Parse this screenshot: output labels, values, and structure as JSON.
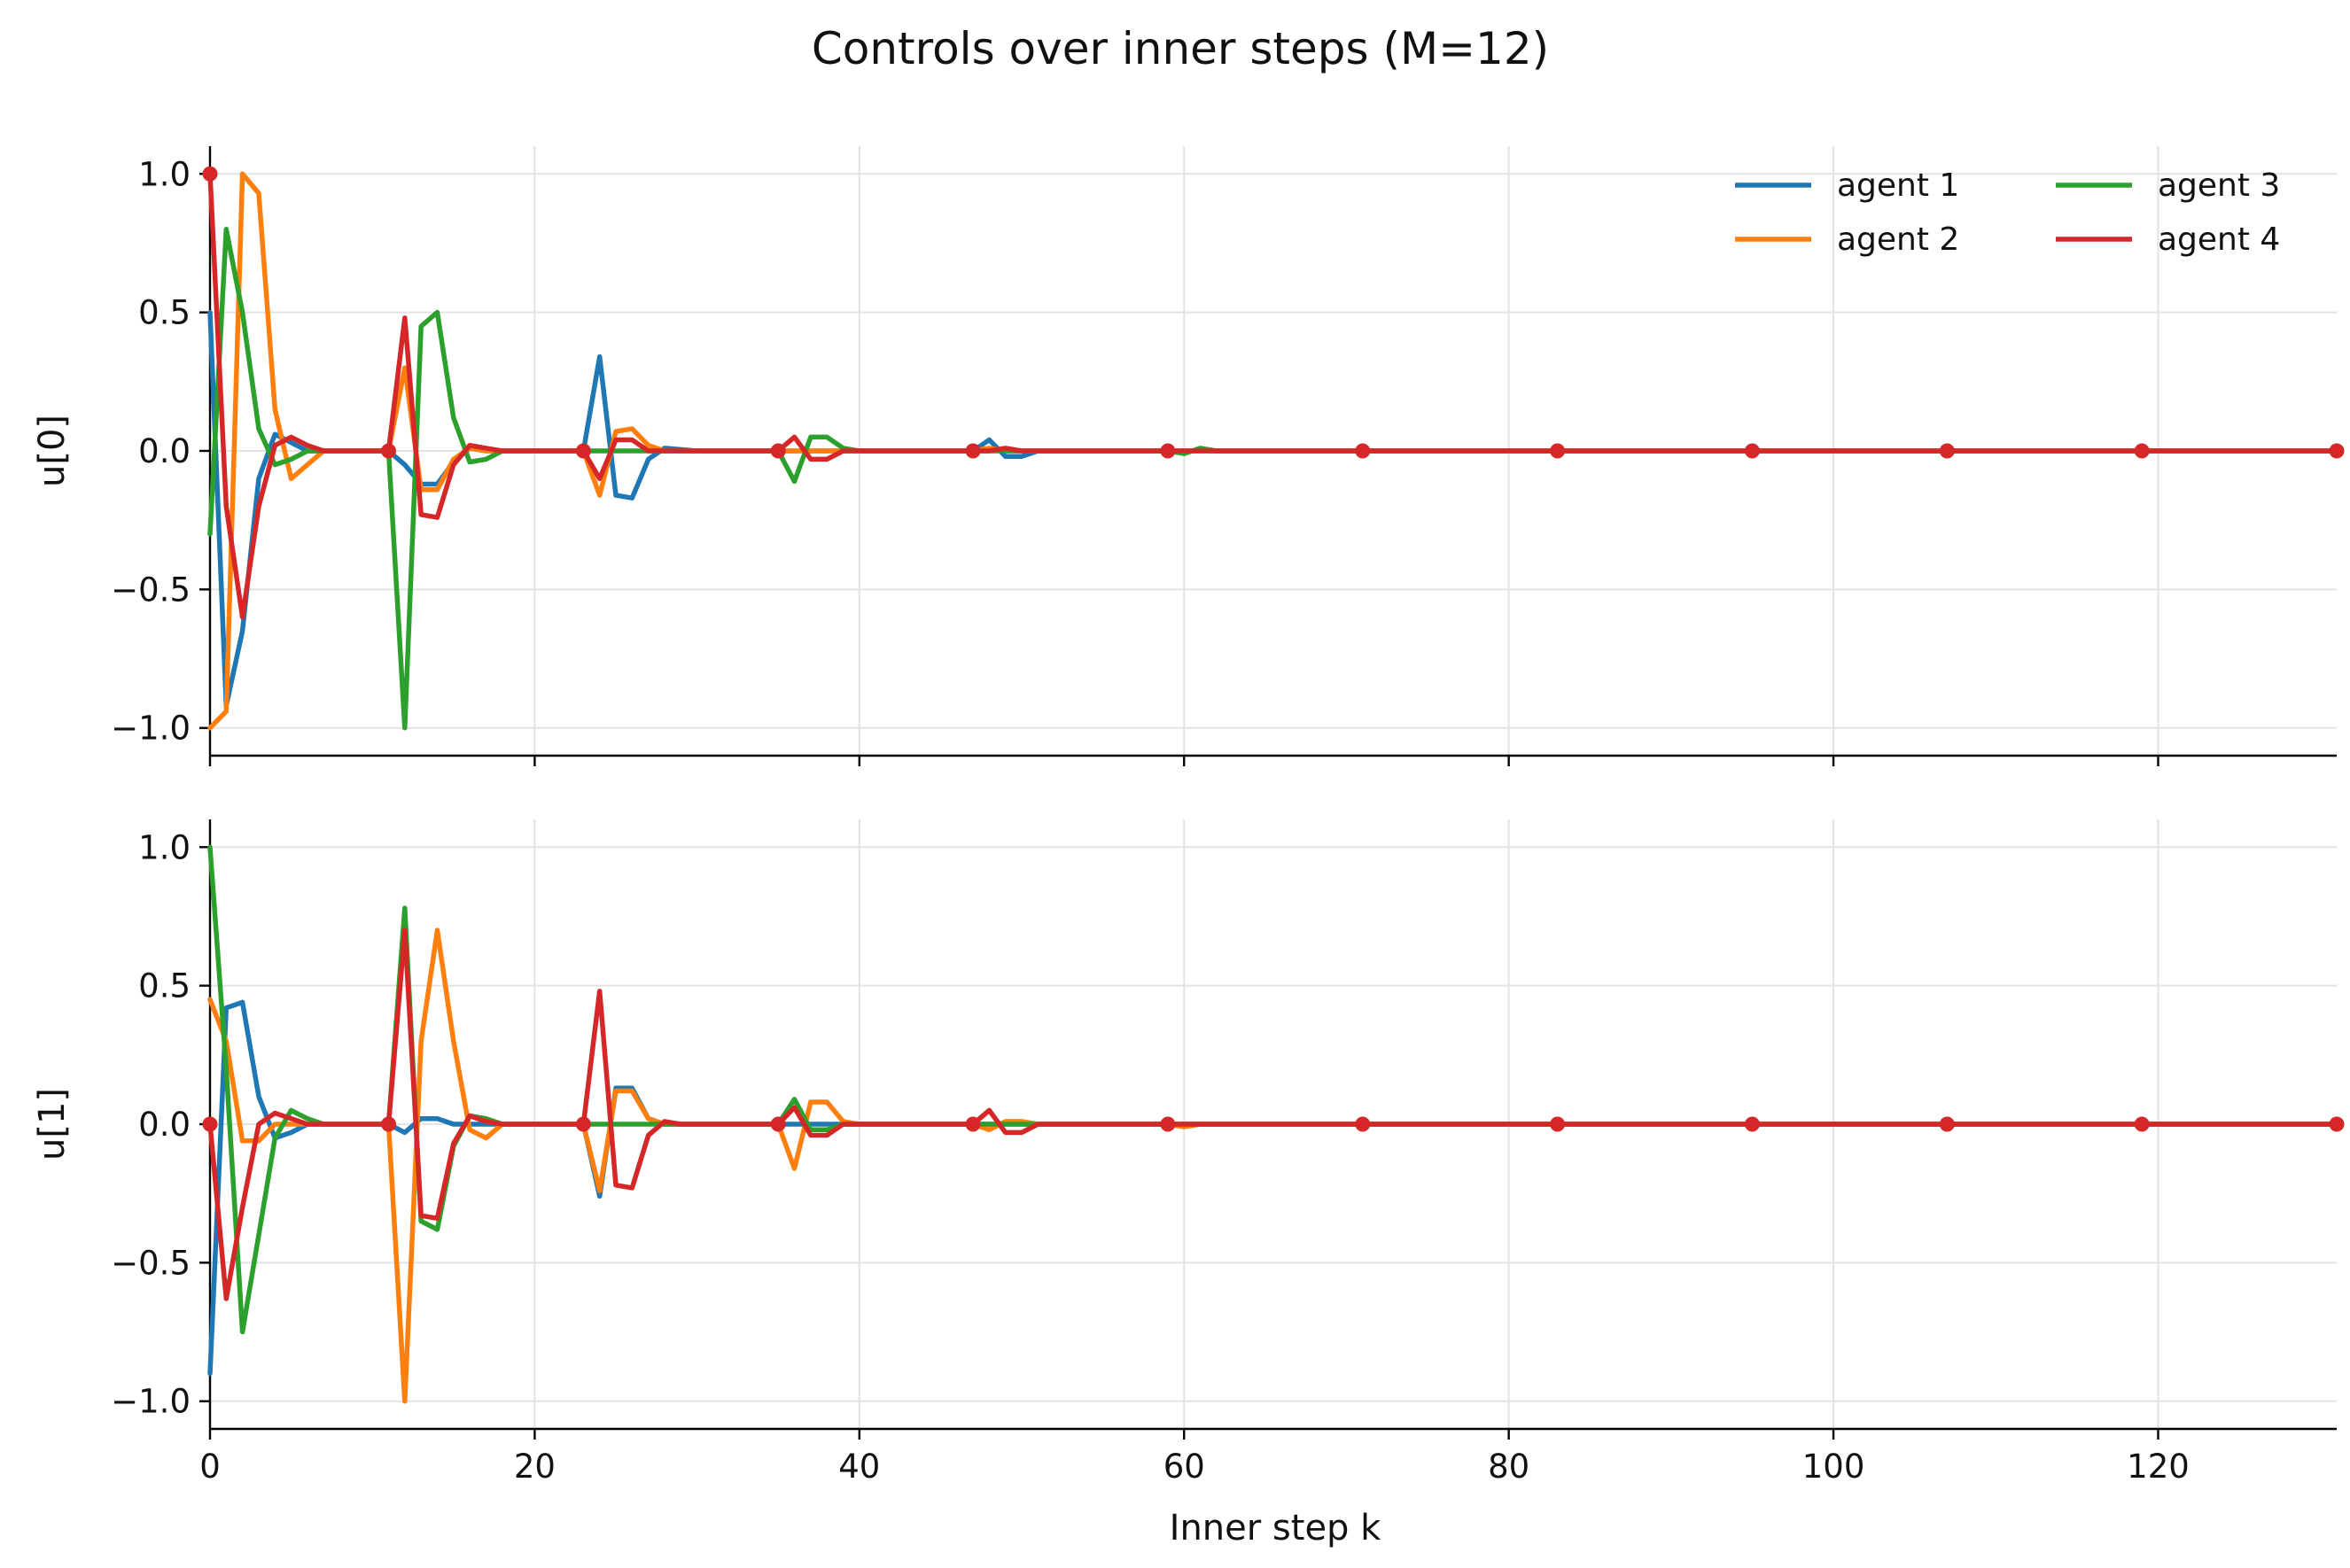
{
  "figure": {
    "title": "Controls over inner steps (M=12)"
  },
  "chart_data": {
    "type": "line",
    "title": "Controls over inner steps (M=12)",
    "xlabel": "Inner step k",
    "xlim": [
      0,
      131
    ],
    "x_ticks": [
      0,
      20,
      40,
      60,
      80,
      100,
      120
    ],
    "x_tick_labels": [
      "0",
      "20",
      "40",
      "60",
      "80",
      "100",
      "120"
    ],
    "y_ticks": [
      -1.0,
      -0.5,
      0.0,
      0.5,
      1.0
    ],
    "y_tick_labels": [
      "−1.0",
      "−0.5",
      "0.0",
      "0.5",
      "1.0"
    ],
    "grid": true,
    "legend": {
      "placement": "top-right",
      "columns": 2
    },
    "colors": {
      "agent 1": "#1f77b4",
      "agent 2": "#ff7f0e",
      "agent 3": "#2ca02c",
      "agent 4": "#d62728"
    },
    "marker_series": "agent 4",
    "marker_x": [
      0,
      11,
      23,
      35,
      47,
      59,
      71,
      83,
      95,
      107,
      119,
      131
    ],
    "panels": [
      {
        "ylabel": "u[0]",
        "ylim": [
          -1.1,
          1.1
        ],
        "series": [
          {
            "name": "agent 1",
            "points": [
              [
                0,
                0.5
              ],
              [
                1,
                -0.92
              ],
              [
                2,
                -0.65
              ],
              [
                3,
                -0.1
              ],
              [
                4,
                0.06
              ],
              [
                5,
                0.03
              ],
              [
                6,
                0.0
              ],
              [
                8,
                0.0
              ],
              [
                11,
                0.0
              ],
              [
                12,
                -0.05
              ],
              [
                13,
                -0.12
              ],
              [
                14,
                -0.12
              ],
              [
                15,
                -0.04
              ],
              [
                16,
                0.01
              ],
              [
                17,
                0.0
              ],
              [
                23,
                0.0
              ],
              [
                24,
                0.34
              ],
              [
                25,
                -0.16
              ],
              [
                26,
                -0.17
              ],
              [
                27,
                -0.03
              ],
              [
                28,
                0.01
              ],
              [
                30,
                0.0
              ],
              [
                35,
                0.0
              ],
              [
                36,
                0.0
              ],
              [
                37,
                0.0
              ],
              [
                38,
                0.0
              ],
              [
                47,
                0.0
              ],
              [
                48,
                0.04
              ],
              [
                49,
                -0.02
              ],
              [
                50,
                -0.02
              ],
              [
                51,
                0.0
              ],
              [
                131,
                0.0
              ]
            ]
          },
          {
            "name": "agent 2",
            "points": [
              [
                0,
                -1.0
              ],
              [
                1,
                -0.94
              ],
              [
                2,
                1.0
              ],
              [
                3,
                0.93
              ],
              [
                4,
                0.15
              ],
              [
                5,
                -0.1
              ],
              [
                6,
                -0.05
              ],
              [
                7,
                0.0
              ],
              [
                11,
                0.0
              ],
              [
                12,
                0.3
              ],
              [
                13,
                -0.14
              ],
              [
                14,
                -0.14
              ],
              [
                15,
                -0.03
              ],
              [
                16,
                0.01
              ],
              [
                17,
                0.0
              ],
              [
                23,
                0.0
              ],
              [
                24,
                -0.16
              ],
              [
                25,
                0.07
              ],
              [
                26,
                0.08
              ],
              [
                27,
                0.02
              ],
              [
                28,
                0.0
              ],
              [
                35,
                0.0
              ],
              [
                47,
                0.0
              ],
              [
                48,
                0.01
              ],
              [
                49,
                0.0
              ],
              [
                131,
                0.0
              ]
            ]
          },
          {
            "name": "agent 3",
            "points": [
              [
                0,
                -0.3
              ],
              [
                1,
                0.8
              ],
              [
                2,
                0.5
              ],
              [
                3,
                0.08
              ],
              [
                4,
                -0.05
              ],
              [
                5,
                -0.03
              ],
              [
                6,
                0.0
              ],
              [
                11,
                0.0
              ],
              [
                12,
                -1.0
              ],
              [
                13,
                0.45
              ],
              [
                14,
                0.5
              ],
              [
                15,
                0.12
              ],
              [
                16,
                -0.04
              ],
              [
                17,
                -0.03
              ],
              [
                18,
                0.0
              ],
              [
                23,
                0.0
              ],
              [
                35,
                0.0
              ],
              [
                36,
                -0.11
              ],
              [
                37,
                0.05
              ],
              [
                38,
                0.05
              ],
              [
                39,
                0.01
              ],
              [
                40,
                0.0
              ],
              [
                59,
                0.0
              ],
              [
                60,
                -0.01
              ],
              [
                61,
                0.01
              ],
              [
                62,
                0.0
              ],
              [
                131,
                0.0
              ]
            ]
          },
          {
            "name": "agent 4",
            "points": [
              [
                0,
                1.0
              ],
              [
                1,
                -0.2
              ],
              [
                2,
                -0.6
              ],
              [
                3,
                -0.2
              ],
              [
                4,
                0.02
              ],
              [
                5,
                0.05
              ],
              [
                6,
                0.02
              ],
              [
                7,
                0.0
              ],
              [
                11,
                0.0
              ],
              [
                12,
                0.48
              ],
              [
                13,
                -0.23
              ],
              [
                14,
                -0.24
              ],
              [
                15,
                -0.05
              ],
              [
                16,
                0.02
              ],
              [
                17,
                0.01
              ],
              [
                18,
                0.0
              ],
              [
                23,
                0.0
              ],
              [
                24,
                -0.1
              ],
              [
                25,
                0.04
              ],
              [
                26,
                0.04
              ],
              [
                27,
                0.0
              ],
              [
                35,
                0.0
              ],
              [
                36,
                0.05
              ],
              [
                37,
                -0.03
              ],
              [
                38,
                -0.03
              ],
              [
                39,
                0.0
              ],
              [
                47,
                0.0
              ],
              [
                48,
                0.0
              ],
              [
                49,
                0.01
              ],
              [
                50,
                0.0
              ],
              [
                131,
                0.0
              ]
            ]
          }
        ]
      },
      {
        "ylabel": "u[1]",
        "ylim": [
          -1.1,
          1.1
        ],
        "series": [
          {
            "name": "agent 1",
            "points": [
              [
                0,
                -0.9
              ],
              [
                1,
                0.42
              ],
              [
                2,
                0.44
              ],
              [
                3,
                0.1
              ],
              [
                4,
                -0.05
              ],
              [
                5,
                -0.03
              ],
              [
                6,
                0.0
              ],
              [
                11,
                0.0
              ],
              [
                12,
                -0.03
              ],
              [
                13,
                0.02
              ],
              [
                14,
                0.02
              ],
              [
                15,
                0.0
              ],
              [
                23,
                0.0
              ],
              [
                24,
                -0.26
              ],
              [
                25,
                0.13
              ],
              [
                26,
                0.13
              ],
              [
                27,
                0.02
              ],
              [
                28,
                0.0
              ],
              [
                35,
                0.0
              ],
              [
                47,
                0.0
              ],
              [
                48,
                0.0
              ],
              [
                131,
                0.0
              ]
            ]
          },
          {
            "name": "agent 2",
            "points": [
              [
                0,
                0.45
              ],
              [
                1,
                0.3
              ],
              [
                2,
                -0.06
              ],
              [
                3,
                -0.06
              ],
              [
                4,
                0.0
              ],
              [
                5,
                0.0
              ],
              [
                11,
                0.0
              ],
              [
                12,
                -1.0
              ],
              [
                13,
                0.3
              ],
              [
                14,
                0.7
              ],
              [
                15,
                0.3
              ],
              [
                16,
                -0.02
              ],
              [
                17,
                -0.05
              ],
              [
                18,
                0.0
              ],
              [
                23,
                0.0
              ],
              [
                24,
                -0.24
              ],
              [
                25,
                0.12
              ],
              [
                26,
                0.12
              ],
              [
                27,
                0.02
              ],
              [
                28,
                0.0
              ],
              [
                35,
                0.0
              ],
              [
                36,
                -0.16
              ],
              [
                37,
                0.08
              ],
              [
                38,
                0.08
              ],
              [
                39,
                0.01
              ],
              [
                40,
                0.0
              ],
              [
                47,
                0.0
              ],
              [
                48,
                -0.02
              ],
              [
                49,
                0.01
              ],
              [
                50,
                0.01
              ],
              [
                51,
                0.0
              ],
              [
                59,
                0.0
              ],
              [
                60,
                -0.01
              ],
              [
                61,
                0.0
              ],
              [
                131,
                0.0
              ]
            ]
          },
          {
            "name": "agent 3",
            "points": [
              [
                0,
                1.0
              ],
              [
                1,
                0.2
              ],
              [
                2,
                -0.75
              ],
              [
                3,
                -0.4
              ],
              [
                4,
                -0.05
              ],
              [
                5,
                0.05
              ],
              [
                6,
                0.02
              ],
              [
                7,
                0.0
              ],
              [
                11,
                0.0
              ],
              [
                12,
                0.78
              ],
              [
                13,
                -0.35
              ],
              [
                14,
                -0.38
              ],
              [
                15,
                -0.08
              ],
              [
                16,
                0.03
              ],
              [
                17,
                0.02
              ],
              [
                18,
                0.0
              ],
              [
                23,
                0.0
              ],
              [
                24,
                0.0
              ],
              [
                35,
                0.0
              ],
              [
                36,
                0.09
              ],
              [
                37,
                -0.02
              ],
              [
                38,
                -0.02
              ],
              [
                39,
                0.0
              ],
              [
                131,
                0.0
              ]
            ]
          },
          {
            "name": "agent 4",
            "points": [
              [
                0,
                0.0
              ],
              [
                1,
                -0.63
              ],
              [
                2,
                -0.3
              ],
              [
                3,
                0.0
              ],
              [
                4,
                0.04
              ],
              [
                5,
                0.02
              ],
              [
                6,
                0.0
              ],
              [
                11,
                0.0
              ],
              [
                12,
                0.7
              ],
              [
                13,
                -0.33
              ],
              [
                14,
                -0.34
              ],
              [
                15,
                -0.07
              ],
              [
                16,
                0.03
              ],
              [
                17,
                0.01
              ],
              [
                18,
                0.0
              ],
              [
                23,
                0.0
              ],
              [
                24,
                0.48
              ],
              [
                25,
                -0.22
              ],
              [
                26,
                -0.23
              ],
              [
                27,
                -0.04
              ],
              [
                28,
                0.01
              ],
              [
                29,
                0.0
              ],
              [
                35,
                0.0
              ],
              [
                36,
                0.06
              ],
              [
                37,
                -0.04
              ],
              [
                38,
                -0.04
              ],
              [
                39,
                0.0
              ],
              [
                47,
                0.0
              ],
              [
                48,
                0.05
              ],
              [
                49,
                -0.03
              ],
              [
                50,
                -0.03
              ],
              [
                51,
                0.0
              ],
              [
                131,
                0.0
              ]
            ]
          }
        ]
      }
    ]
  }
}
